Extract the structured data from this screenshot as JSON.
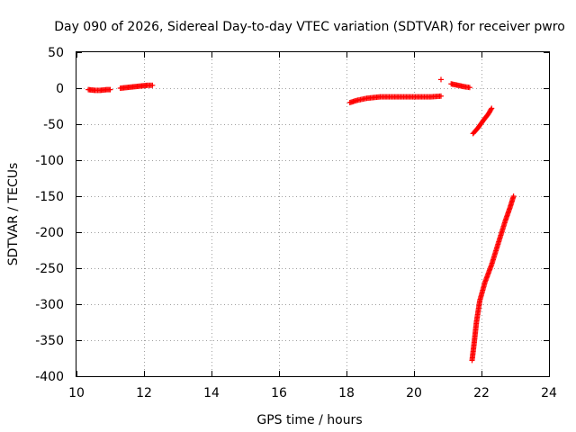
{
  "chart_data": {
    "type": "scatter",
    "title": "Day 090 of 2026, Sidereal Day-to-day VTEC variation (SDTVAR) for receiver pwro",
    "xlabel": "GPS time / hours",
    "ylabel": "SDTVAR / TECUs",
    "xlim": [
      10,
      24
    ],
    "ylim": [
      -400,
      50
    ],
    "xticks": [
      10,
      12,
      14,
      16,
      18,
      20,
      22,
      24
    ],
    "yticks": [
      50,
      0,
      -50,
      -100,
      -150,
      -200,
      -250,
      -300,
      -350,
      -400
    ],
    "grid": true,
    "legend": "none",
    "marker": "plus",
    "color": "#ff0000",
    "segments": [
      {
        "x": [
          10.35,
          10.55,
          10.7,
          10.9,
          11.0
        ],
        "y": [
          -2,
          -3,
          -3,
          -2,
          -2
        ]
      },
      {
        "x": [
          11.3,
          11.5,
          11.7,
          11.9,
          12.1,
          12.25
        ],
        "y": [
          0,
          1,
          2,
          3,
          4,
          4
        ]
      },
      {
        "x": [
          18.1,
          18.3,
          18.6,
          19.0,
          19.5,
          20.0,
          20.5,
          20.8
        ],
        "y": [
          -20,
          -17,
          -14,
          -12,
          -12,
          -12,
          -12,
          -11
        ]
      },
      {
        "x": [
          20.8
        ],
        "y": [
          12
        ]
      },
      {
        "x": [
          21.1,
          21.3,
          21.5,
          21.65
        ],
        "y": [
          6,
          4,
          2,
          1
        ]
      },
      {
        "x": [
          21.75,
          21.9,
          22.05,
          22.2,
          22.3
        ],
        "y": [
          -63,
          -55,
          -45,
          -36,
          -28
        ]
      },
      {
        "x": [
          21.72,
          21.78,
          21.85,
          21.95,
          22.1,
          22.3,
          22.5,
          22.7,
          22.85,
          22.95
        ],
        "y": [
          -378,
          -355,
          -325,
          -295,
          -270,
          -245,
          -215,
          -185,
          -165,
          -150
        ]
      }
    ]
  }
}
